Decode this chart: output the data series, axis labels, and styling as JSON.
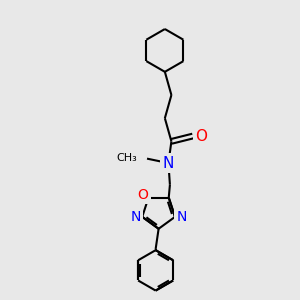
{
  "background_color": "#e8e8e8",
  "bond_color": "#000000",
  "N_color": "#0000ff",
  "O_color": "#ff0000",
  "line_width": 1.5,
  "fig_size": [
    3.0,
    3.0
  ],
  "dpi": 100,
  "xlim": [
    0,
    10
  ],
  "ylim": [
    0,
    10
  ]
}
